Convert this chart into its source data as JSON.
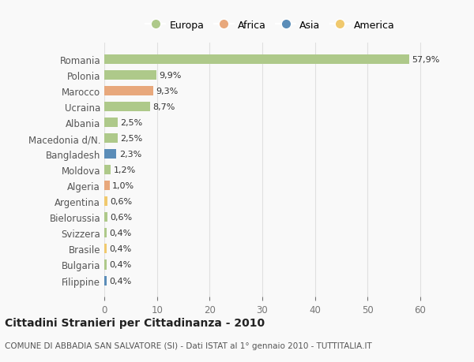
{
  "countries": [
    "Romania",
    "Polonia",
    "Marocco",
    "Ucraina",
    "Albania",
    "Macedonia d/N.",
    "Bangladesh",
    "Moldova",
    "Algeria",
    "Argentina",
    "Bielorussia",
    "Svizzera",
    "Brasile",
    "Bulgaria",
    "Filippine"
  ],
  "values": [
    57.9,
    9.9,
    9.3,
    8.7,
    2.5,
    2.5,
    2.3,
    1.2,
    1.0,
    0.6,
    0.6,
    0.4,
    0.4,
    0.4,
    0.4
  ],
  "labels": [
    "57,9%",
    "9,9%",
    "9,3%",
    "8,7%",
    "2,5%",
    "2,5%",
    "2,3%",
    "1,2%",
    "1,0%",
    "0,6%",
    "0,6%",
    "0,4%",
    "0,4%",
    "0,4%",
    "0,4%"
  ],
  "continents": [
    "Europa",
    "Europa",
    "Africa",
    "Europa",
    "Europa",
    "Europa",
    "Asia",
    "Europa",
    "Africa",
    "America",
    "Europa",
    "Europa",
    "America",
    "Europa",
    "Asia"
  ],
  "colors": {
    "Europa": "#aec98a",
    "Africa": "#e8a87c",
    "Asia": "#5b8db8",
    "America": "#f0c96e"
  },
  "legend_order": [
    "Europa",
    "Africa",
    "Asia",
    "America"
  ],
  "title": "Cittadini Stranieri per Cittadinanza - 2010",
  "subtitle": "COMUNE DI ABBADIA SAN SALVATORE (SI) - Dati ISTAT al 1° gennaio 2010 - TUTTITALIA.IT",
  "xlim": [
    0,
    63
  ],
  "xticks": [
    0,
    10,
    20,
    30,
    40,
    50,
    60
  ],
  "bg_color": "#f9f9f9",
  "grid_color": "#e0e0e0",
  "bar_height": 0.6
}
